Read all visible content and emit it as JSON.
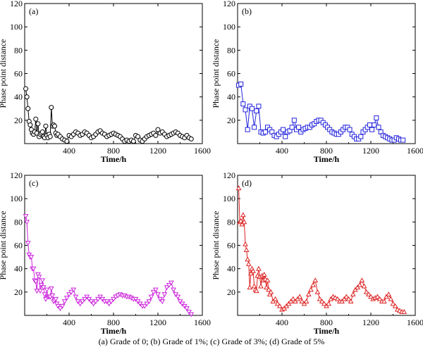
{
  "caption": "(a) Grade of 0; (b) Grade of 1%; (c) Grade of 3%; (d) Grade of 5%",
  "chart_data": [
    {
      "type": "line",
      "panel_label": "(a)",
      "xlabel": "Time/h",
      "ylabel": "Phase point distance",
      "xlim": [
        0,
        1600
      ],
      "ylim": [
        0,
        120
      ],
      "xticks": [
        400,
        800,
        1200,
        1600
      ],
      "yticks": [
        20,
        40,
        60,
        80,
        100,
        120
      ],
      "marker": "circle",
      "color": "#000000",
      "x": [
        10,
        20,
        30,
        40,
        50,
        60,
        70,
        80,
        90,
        100,
        110,
        120,
        130,
        140,
        150,
        160,
        170,
        180,
        190,
        200,
        210,
        220,
        230,
        240,
        250,
        260,
        270,
        280,
        290,
        300,
        320,
        340,
        360,
        380,
        400,
        420,
        440,
        460,
        480,
        500,
        520,
        540,
        560,
        580,
        600,
        620,
        640,
        660,
        680,
        700,
        720,
        740,
        760,
        780,
        800,
        820,
        840,
        860,
        880,
        900,
        920,
        940,
        960,
        980,
        1000,
        1020,
        1040,
        1060,
        1080,
        1100,
        1120,
        1140,
        1160,
        1180,
        1200,
        1220,
        1240,
        1260,
        1280,
        1300,
        1320,
        1340,
        1360,
        1380,
        1400,
        1420,
        1440,
        1460,
        1480,
        1500
      ],
      "y": [
        47,
        40,
        30,
        19,
        16,
        12,
        9,
        8,
        10,
        21,
        9,
        17,
        6,
        8,
        9,
        10,
        6,
        5,
        15,
        7,
        5,
        8,
        6,
        31,
        15,
        16,
        15,
        9,
        7,
        8,
        6,
        4,
        3,
        2,
        7,
        6,
        8,
        10,
        9,
        7,
        8,
        10,
        9,
        7,
        5,
        6,
        8,
        10,
        11,
        9,
        8,
        6,
        7,
        8,
        9,
        8,
        7,
        6,
        4,
        2,
        3,
        2,
        3,
        2,
        7,
        6,
        3,
        2,
        4,
        6,
        7,
        8,
        9,
        7,
        12,
        9,
        10,
        8,
        6,
        7,
        8,
        9,
        10,
        9,
        7,
        6,
        5,
        7,
        5,
        4
      ]
    },
    {
      "type": "line",
      "panel_label": "(b)",
      "xlabel": "Time/h",
      "ylabel": "Phase point distance",
      "xlim": [
        0,
        1600
      ],
      "ylim": [
        0,
        120
      ],
      "xticks": [
        400,
        800,
        1200,
        1600
      ],
      "yticks": [
        20,
        40,
        60,
        80,
        100,
        120
      ],
      "marker": "square",
      "color": "#2222dd",
      "x": [
        10,
        30,
        50,
        70,
        90,
        110,
        130,
        150,
        170,
        190,
        210,
        230,
        250,
        270,
        290,
        310,
        330,
        350,
        370,
        390,
        410,
        430,
        450,
        470,
        490,
        510,
        530,
        550,
        570,
        590,
        610,
        630,
        650,
        670,
        690,
        710,
        730,
        750,
        770,
        790,
        810,
        830,
        850,
        870,
        890,
        910,
        930,
        950,
        970,
        990,
        1010,
        1030,
        1050,
        1070,
        1090,
        1110,
        1130,
        1150,
        1170,
        1190,
        1210,
        1230,
        1250,
        1270,
        1290,
        1310,
        1330,
        1350,
        1370,
        1390,
        1410,
        1430,
        1450,
        1470,
        1490
      ],
      "y": [
        50,
        51,
        34,
        29,
        12,
        32,
        30,
        14,
        28,
        32,
        10,
        9,
        10,
        14,
        12,
        10,
        7,
        6,
        8,
        10,
        12,
        6,
        10,
        11,
        14,
        20,
        12,
        14,
        10,
        12,
        13,
        14,
        14,
        16,
        17,
        19,
        20,
        20,
        18,
        16,
        14,
        12,
        10,
        9,
        8,
        8,
        10,
        12,
        14,
        14,
        12,
        8,
        6,
        4,
        4,
        6,
        10,
        12,
        14,
        16,
        12,
        16,
        22,
        14,
        10,
        7,
        6,
        5,
        4,
        3,
        3,
        5,
        4,
        3,
        3
      ]
    },
    {
      "type": "line",
      "panel_label": "(c)",
      "xlabel": "Time/h",
      "ylabel": "Phase point distance",
      "xlim": [
        0,
        1600
      ],
      "ylim": [
        0,
        120
      ],
      "xticks": [
        400,
        800,
        1200,
        1600
      ],
      "yticks": [
        20,
        40,
        60,
        80,
        100,
        120
      ],
      "marker": "triangle-down",
      "color": "#cc22dd",
      "x": [
        10,
        20,
        30,
        40,
        50,
        60,
        70,
        80,
        90,
        100,
        110,
        120,
        130,
        140,
        150,
        160,
        170,
        180,
        190,
        200,
        210,
        220,
        230,
        240,
        250,
        260,
        270,
        280,
        290,
        300,
        320,
        340,
        360,
        380,
        400,
        420,
        440,
        460,
        480,
        500,
        520,
        540,
        560,
        580,
        600,
        620,
        640,
        660,
        680,
        700,
        720,
        740,
        760,
        780,
        800,
        820,
        840,
        860,
        880,
        900,
        920,
        940,
        960,
        980,
        1000,
        1020,
        1040,
        1060,
        1080,
        1100,
        1120,
        1140,
        1160,
        1180,
        1200,
        1220,
        1240,
        1260,
        1280,
        1300,
        1320,
        1340,
        1360,
        1380,
        1400,
        1420,
        1440,
        1460,
        1480,
        1500
      ],
      "y": [
        85,
        80,
        62,
        52,
        50,
        50,
        40,
        40,
        30,
        29,
        21,
        35,
        33,
        21,
        26,
        30,
        24,
        18,
        14,
        22,
        16,
        16,
        16,
        23,
        17,
        12,
        13,
        14,
        10,
        8,
        6,
        8,
        12,
        15,
        18,
        20,
        22,
        16,
        12,
        10,
        12,
        14,
        16,
        14,
        12,
        10,
        12,
        14,
        16,
        14,
        12,
        12,
        10,
        12,
        14,
        16,
        17,
        18,
        17,
        17,
        16,
        16,
        15,
        14,
        14,
        12,
        10,
        8,
        8,
        10,
        12,
        16,
        20,
        22,
        18,
        14,
        12,
        18,
        24,
        26,
        28,
        22,
        18,
        16,
        12,
        10,
        8,
        6,
        3,
        1
      ]
    },
    {
      "type": "line",
      "panel_label": "(d)",
      "xlabel": "Time/h",
      "ylabel": "Phase point distance",
      "xlim": [
        0,
        1600
      ],
      "ylim": [
        0,
        120
      ],
      "xticks": [
        400,
        800,
        1200,
        1600
      ],
      "yticks": [
        20,
        40,
        60,
        80,
        100,
        120
      ],
      "marker": "triangle-up",
      "color": "#dd2222",
      "x": [
        10,
        20,
        30,
        40,
        50,
        60,
        70,
        80,
        90,
        100,
        110,
        120,
        130,
        140,
        150,
        160,
        170,
        180,
        190,
        200,
        210,
        220,
        230,
        240,
        250,
        260,
        270,
        280,
        290,
        300,
        320,
        340,
        360,
        380,
        400,
        420,
        440,
        460,
        480,
        500,
        520,
        540,
        560,
        580,
        600,
        620,
        640,
        660,
        680,
        700,
        720,
        740,
        760,
        780,
        800,
        820,
        840,
        860,
        880,
        900,
        920,
        940,
        960,
        980,
        1000,
        1020,
        1040,
        1060,
        1080,
        1100,
        1120,
        1140,
        1160,
        1180,
        1200,
        1220,
        1240,
        1260,
        1280,
        1300,
        1320,
        1340,
        1360,
        1380,
        1400,
        1420,
        1440,
        1460,
        1480,
        1500
      ],
      "y": [
        109,
        80,
        81,
        78,
        86,
        80,
        61,
        56,
        48,
        44,
        24,
        36,
        40,
        38,
        25,
        22,
        21,
        34,
        40,
        33,
        25,
        34,
        30,
        35,
        31,
        24,
        30,
        22,
        18,
        20,
        12,
        14,
        10,
        8,
        5,
        6,
        8,
        10,
        12,
        14,
        12,
        14,
        16,
        12,
        10,
        12,
        18,
        22,
        26,
        30,
        20,
        14,
        12,
        10,
        8,
        10,
        14,
        16,
        15,
        14,
        12,
        12,
        14,
        16,
        14,
        12,
        18,
        22,
        24,
        26,
        30,
        25,
        20,
        18,
        16,
        14,
        15,
        16,
        14,
        12,
        12,
        16,
        18,
        14,
        10,
        8,
        5,
        4,
        3,
        3
      ]
    }
  ]
}
